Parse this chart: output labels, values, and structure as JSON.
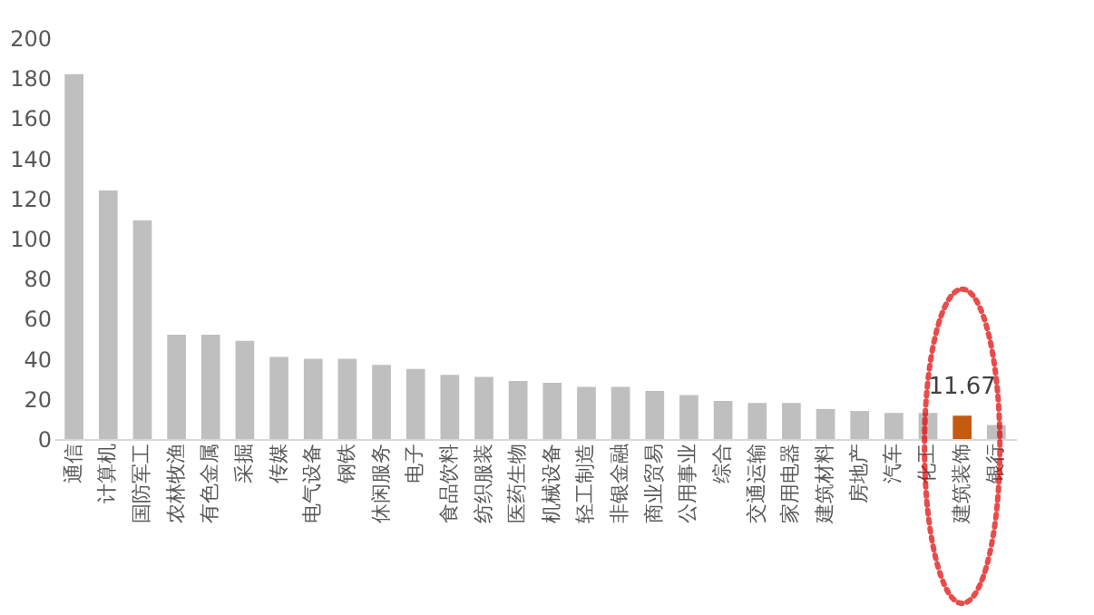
{
  "chart_data": {
    "type": "bar",
    "categories": [
      "通信",
      "计算机",
      "国防军工",
      "农林牧渔",
      "有色金属",
      "采掘",
      "传媒",
      "电气设备",
      "钢铁",
      "休闲服务",
      "电子",
      "食品饮料",
      "纺织服装",
      "医药生物",
      "机械设备",
      "轻工制造",
      "非银金融",
      "商业贸易",
      "公用事业",
      "综合",
      "交通运输",
      "家用电器",
      "建筑材料",
      "房地产",
      "汽车",
      "化工",
      "建筑装饰",
      "银行"
    ],
    "values": [
      182,
      124,
      109,
      52,
      52,
      49,
      41,
      40,
      40,
      37,
      35,
      32,
      31,
      29,
      28,
      26,
      26,
      24,
      22,
      19,
      18,
      18,
      15,
      14,
      13,
      13,
      11.67,
      7
    ],
    "colors": [
      "#bfbfbf",
      "#bfbfbf",
      "#bfbfbf",
      "#bfbfbf",
      "#bfbfbf",
      "#bfbfbf",
      "#bfbfbf",
      "#bfbfbf",
      "#bfbfbf",
      "#bfbfbf",
      "#bfbfbf",
      "#bfbfbf",
      "#bfbfbf",
      "#bfbfbf",
      "#bfbfbf",
      "#bfbfbf",
      "#bfbfbf",
      "#bfbfbf",
      "#bfbfbf",
      "#bfbfbf",
      "#bfbfbf",
      "#bfbfbf",
      "#bfbfbf",
      "#bfbfbf",
      "#bfbfbf",
      "#bfbfbf",
      "#c55a11",
      "#bfbfbf"
    ],
    "value_labels": [
      null,
      null,
      null,
      null,
      null,
      null,
      null,
      null,
      null,
      null,
      null,
      null,
      null,
      null,
      null,
      null,
      null,
      null,
      null,
      null,
      null,
      null,
      null,
      null,
      null,
      null,
      "11.67",
      null
    ],
    "ylim": [
      0,
      200
    ],
    "yticks": [
      0,
      20,
      40,
      60,
      80,
      100,
      120,
      140,
      160,
      180,
      200
    ],
    "grid": false
  }
}
